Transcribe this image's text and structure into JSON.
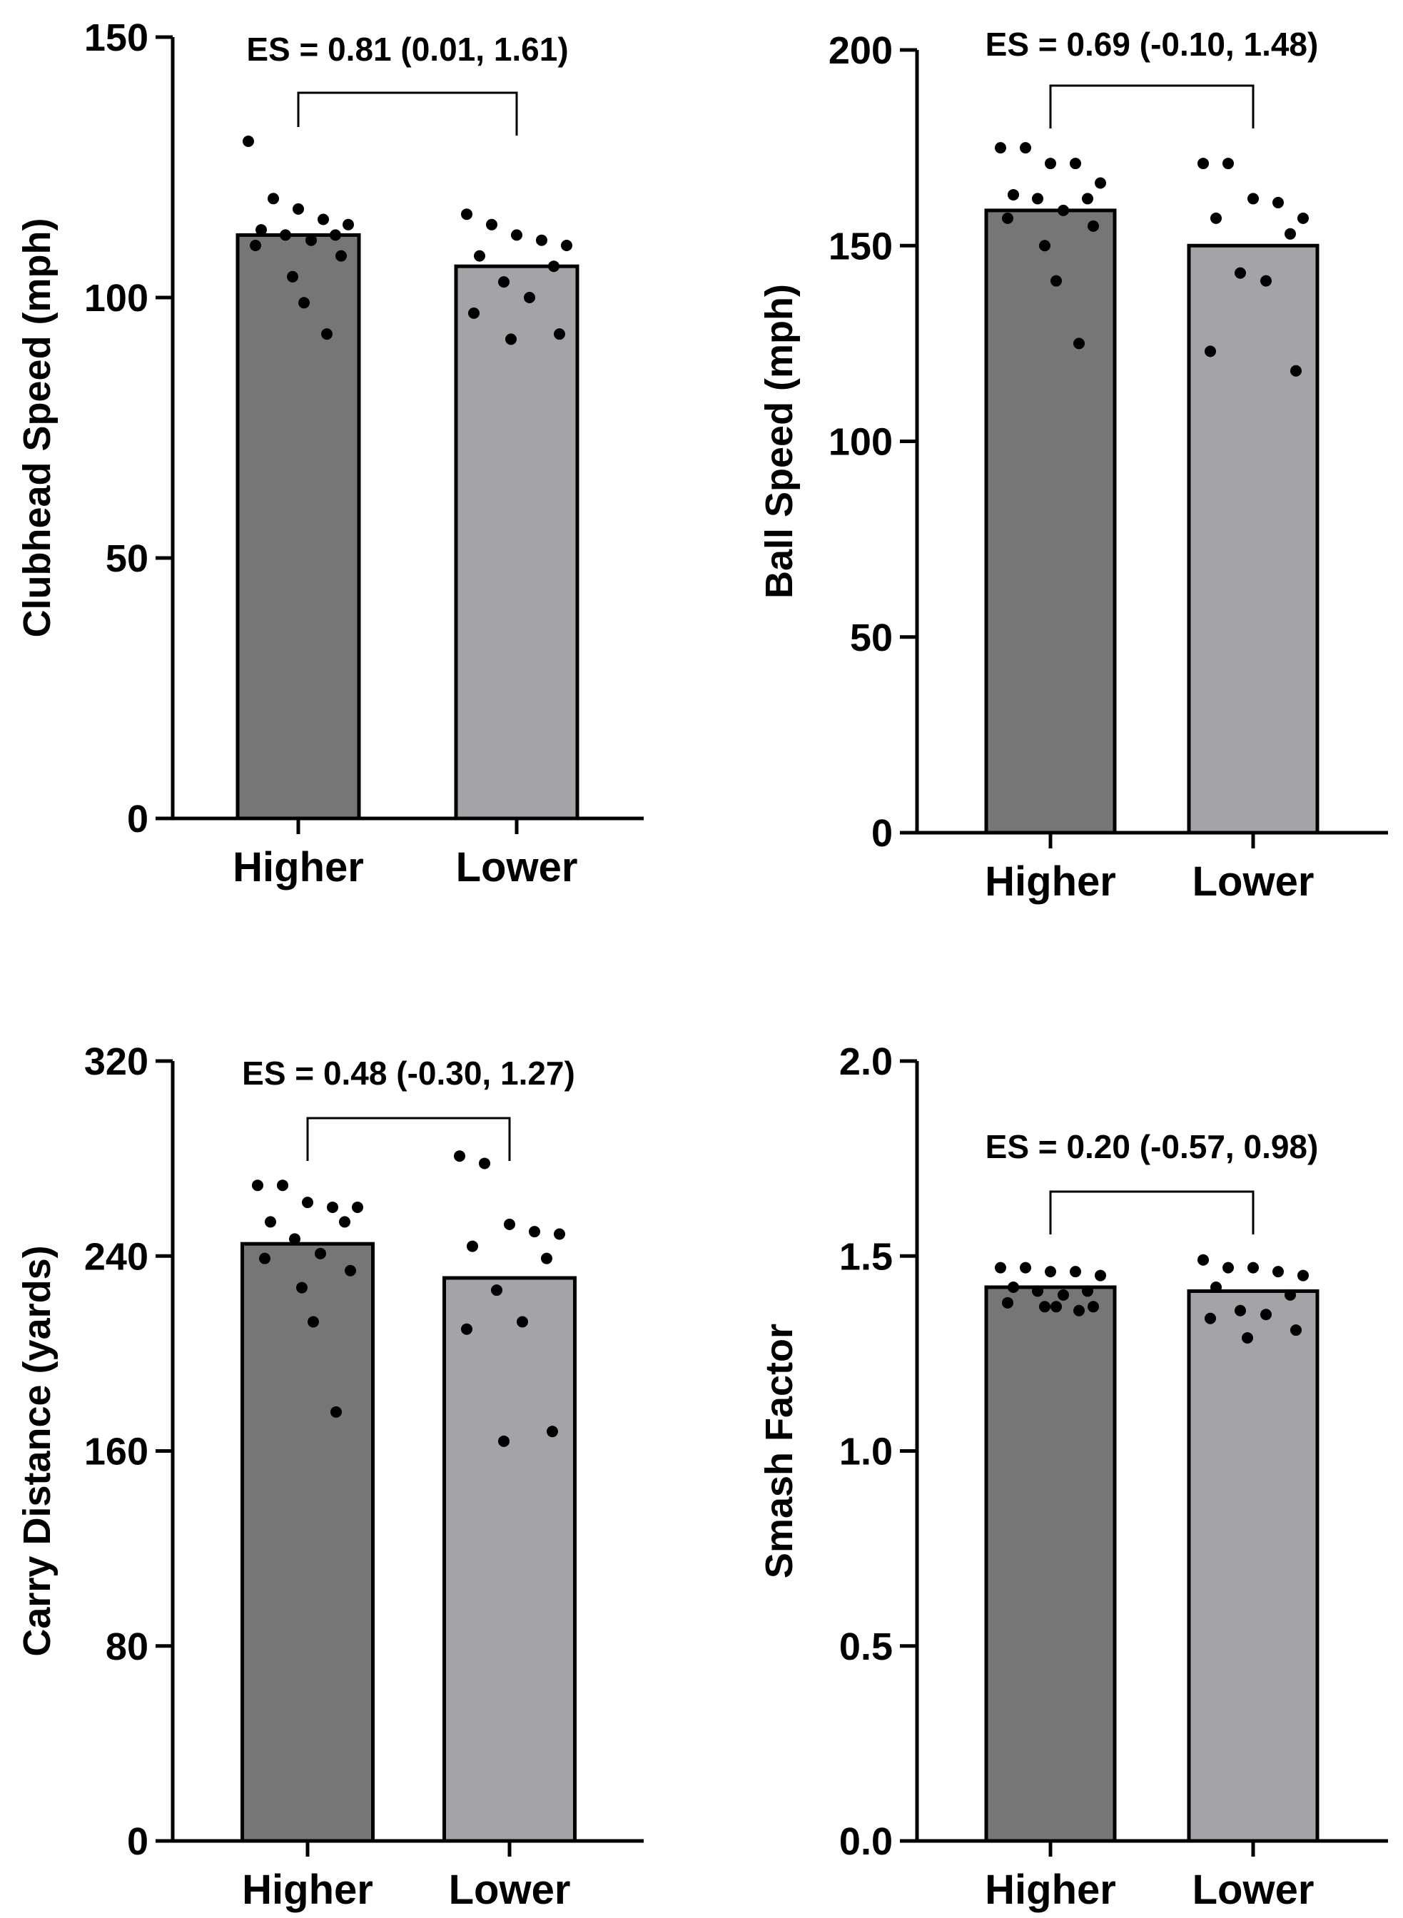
{
  "chart_data": [
    {
      "type": "bar",
      "ylabel": "Clubhead Speed (mph)",
      "ylim": [
        0,
        150
      ],
      "yticks": [
        "0",
        "50",
        "100",
        "150"
      ],
      "categories": [
        "Higher",
        "Lower"
      ],
      "values": [
        112,
        106
      ],
      "points": [
        [
          130,
          119,
          117,
          115,
          114,
          113,
          112,
          112,
          111,
          110,
          108,
          104,
          99,
          93
        ],
        [
          116,
          114,
          112,
          111,
          110,
          108,
          106,
          103,
          100,
          97,
          93,
          92
        ]
      ],
      "bar_colors": [
        "#767676",
        "#a4a3a8"
      ],
      "annotation": "ES = 0.81 (0.01, 1.61)"
    },
    {
      "type": "bar",
      "ylabel": "Ball Speed (mph)",
      "ylim": [
        0,
        200
      ],
      "yticks": [
        "0",
        "50",
        "100",
        "150",
        "200"
      ],
      "categories": [
        "Higher",
        "Lower"
      ],
      "values": [
        159,
        150
      ],
      "points": [
        [
          175,
          175,
          171,
          171,
          166,
          163,
          162,
          162,
          159,
          157,
          155,
          150,
          141,
          125
        ],
        [
          171,
          171,
          162,
          161,
          157,
          157,
          153,
          143,
          141,
          123,
          118
        ]
      ],
      "bar_colors": [
        "#767676",
        "#a4a3a8"
      ],
      "annotation": "ES = 0.69 (-0.10, 1.48)"
    },
    {
      "type": "bar",
      "ylabel": "Carry Distance (yards)",
      "ylim": [
        0,
        320
      ],
      "yticks": [
        "0",
        "80",
        "160",
        "240",
        "320"
      ],
      "categories": [
        "Higher",
        "Lower"
      ],
      "values": [
        245,
        231
      ],
      "points": [
        [
          269,
          269,
          262,
          260,
          260,
          254,
          254,
          247,
          241,
          239,
          234,
          227,
          213,
          176
        ],
        [
          281,
          278,
          253,
          250,
          249,
          244,
          239,
          226,
          213,
          210,
          168,
          164
        ]
      ],
      "bar_colors": [
        "#767676",
        "#a4a3a8"
      ],
      "annotation": "ES = 0.48 (-0.30, 1.27)"
    },
    {
      "type": "bar",
      "ylabel": "Smash Factor",
      "ylim": [
        0,
        2.0
      ],
      "yticks": [
        "0.0",
        "0.5",
        "1.0",
        "1.5",
        "2.0"
      ],
      "categories": [
        "Higher",
        "Lower"
      ],
      "values": [
        1.42,
        1.41
      ],
      "points": [
        [
          1.47,
          1.47,
          1.46,
          1.46,
          1.45,
          1.42,
          1.41,
          1.41,
          1.4,
          1.38,
          1.37,
          1.37,
          1.37,
          1.36
        ],
        [
          1.49,
          1.47,
          1.47,
          1.46,
          1.45,
          1.42,
          1.4,
          1.36,
          1.35,
          1.34,
          1.31,
          1.29
        ]
      ],
      "bar_colors": [
        "#767676",
        "#a4a3a8"
      ],
      "annotation": "ES = 0.20 (-0.57, 0.98)"
    }
  ]
}
